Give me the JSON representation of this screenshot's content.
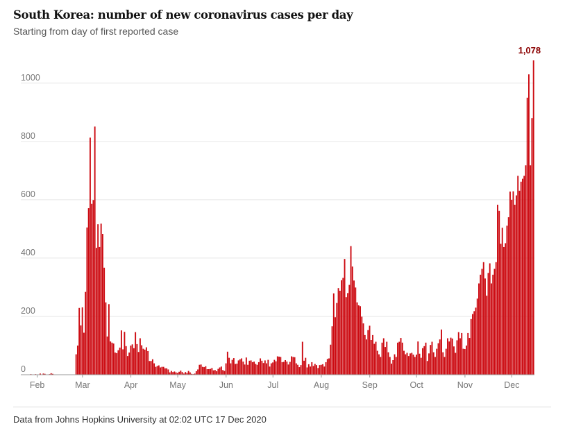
{
  "colors": {
    "bar": "#cc0a11",
    "bar_edge": "#8b0000",
    "peak_label": "#8b0000",
    "grid": "#e6e6e6",
    "axis": "#767676"
  },
  "chart_data": {
    "type": "bar",
    "title": "South Korea: number of new coronavirus cases per day",
    "subtitle": "Starting from day of first reported case",
    "xlabel": "",
    "ylabel": "",
    "ylim": [
      0,
      1078
    ],
    "yticks": [
      {
        "value": 0,
        "label": "0"
      },
      {
        "value": 200,
        "label": "200"
      },
      {
        "value": 400,
        "label": "400"
      },
      {
        "value": 600,
        "label": "600"
      },
      {
        "value": 800,
        "label": "800"
      },
      {
        "value": 1000,
        "label": "1000"
      }
    ],
    "xticks": [
      {
        "day": 10,
        "label": "Feb"
      },
      {
        "day": 39,
        "label": "Mar"
      },
      {
        "day": 70,
        "label": "Apr"
      },
      {
        "day": 100,
        "label": "May"
      },
      {
        "day": 131,
        "label": "Jun"
      },
      {
        "day": 161,
        "label": "Jul"
      },
      {
        "day": 192,
        "label": "Aug"
      },
      {
        "day": 223,
        "label": "Sep"
      },
      {
        "day": 253,
        "label": "Oct"
      },
      {
        "day": 284,
        "label": "Nov"
      },
      {
        "day": 314,
        "label": "Dec"
      }
    ],
    "first_day": "2020-01-22",
    "peak": {
      "value": 1078,
      "label": "1,078"
    },
    "values": [
      1,
      0,
      1,
      0,
      0,
      0,
      2,
      1,
      1,
      2,
      0,
      0,
      4,
      0,
      4,
      3,
      1,
      1,
      2,
      5,
      3,
      0,
      0,
      0,
      0,
      0,
      0,
      1,
      0,
      0,
      0,
      0,
      0,
      0,
      0,
      70,
      100,
      229,
      169,
      231,
      144,
      284,
      505,
      571,
      813,
      586,
      599,
      851,
      435,
      516,
      438,
      518,
      483,
      367,
      248,
      131,
      242,
      114,
      110,
      107,
      76,
      74,
      84,
      93,
      152,
      87,
      147,
      98,
      64,
      76,
      100,
      104,
      91,
      146,
      105,
      78,
      125,
      101,
      89,
      86,
      94,
      81,
      47,
      47,
      53,
      39,
      27,
      30,
      32,
      25,
      27,
      27,
      22,
      22,
      18,
      8,
      13,
      9,
      11,
      8,
      6,
      10,
      14,
      9,
      4,
      9,
      6,
      13,
      8,
      3,
      2,
      4,
      12,
      18,
      34,
      35,
      27,
      26,
      29,
      19,
      19,
      20,
      23,
      15,
      16,
      12,
      20,
      25,
      28,
      16,
      13,
      39,
      79,
      58,
      39,
      51,
      57,
      37,
      38,
      49,
      53,
      56,
      45,
      35,
      59,
      34,
      48,
      49,
      43,
      45,
      37,
      34,
      43,
      56,
      48,
      40,
      49,
      39,
      51,
      28,
      39,
      42,
      51,
      46,
      63,
      62,
      61,
      43,
      44,
      50,
      45,
      35,
      44,
      63,
      61,
      60,
      39,
      34,
      26,
      33,
      113,
      48,
      58,
      25,
      36,
      28,
      43,
      30,
      37,
      33,
      23,
      33,
      34,
      36,
      28,
      43,
      54,
      56,
      103,
      166,
      279,
      197,
      246,
      297,
      288,
      324,
      332,
      397,
      266,
      280,
      308,
      441,
      371,
      323,
      299,
      248,
      238,
      235,
      199,
      176,
      136,
      121,
      153,
      168,
      119,
      136,
      106,
      113,
      82,
      70,
      61,
      110,
      125,
      95,
      113,
      77,
      61,
      38,
      50,
      70,
      61,
      110,
      113,
      126,
      110,
      82,
      70,
      75,
      64,
      73,
      75,
      69,
      61,
      69,
      114,
      72,
      58,
      91,
      98,
      110,
      47,
      73,
      102,
      113,
      77,
      61,
      89,
      108,
      121,
      155,
      77,
      61,
      89,
      125,
      114,
      127,
      124,
      97,
      75,
      118,
      146,
      125,
      143,
      89,
      88,
      100,
      143,
      126,
      191,
      208,
      218,
      230,
      261,
      313,
      343,
      363,
      386,
      330,
      271,
      349,
      382,
      313,
      343,
      363,
      386,
      583,
      562,
      449,
      504,
      438,
      451,
      511,
      540,
      628,
      600,
      629,
      583,
      615,
      682,
      631,
      662,
      672,
      682,
      718,
      950,
      1030,
      718,
      880,
      1078
    ]
  },
  "footer": {
    "source": "Data from Johns Hopkins University at 02:02 UTC 17 Dec 2020"
  }
}
